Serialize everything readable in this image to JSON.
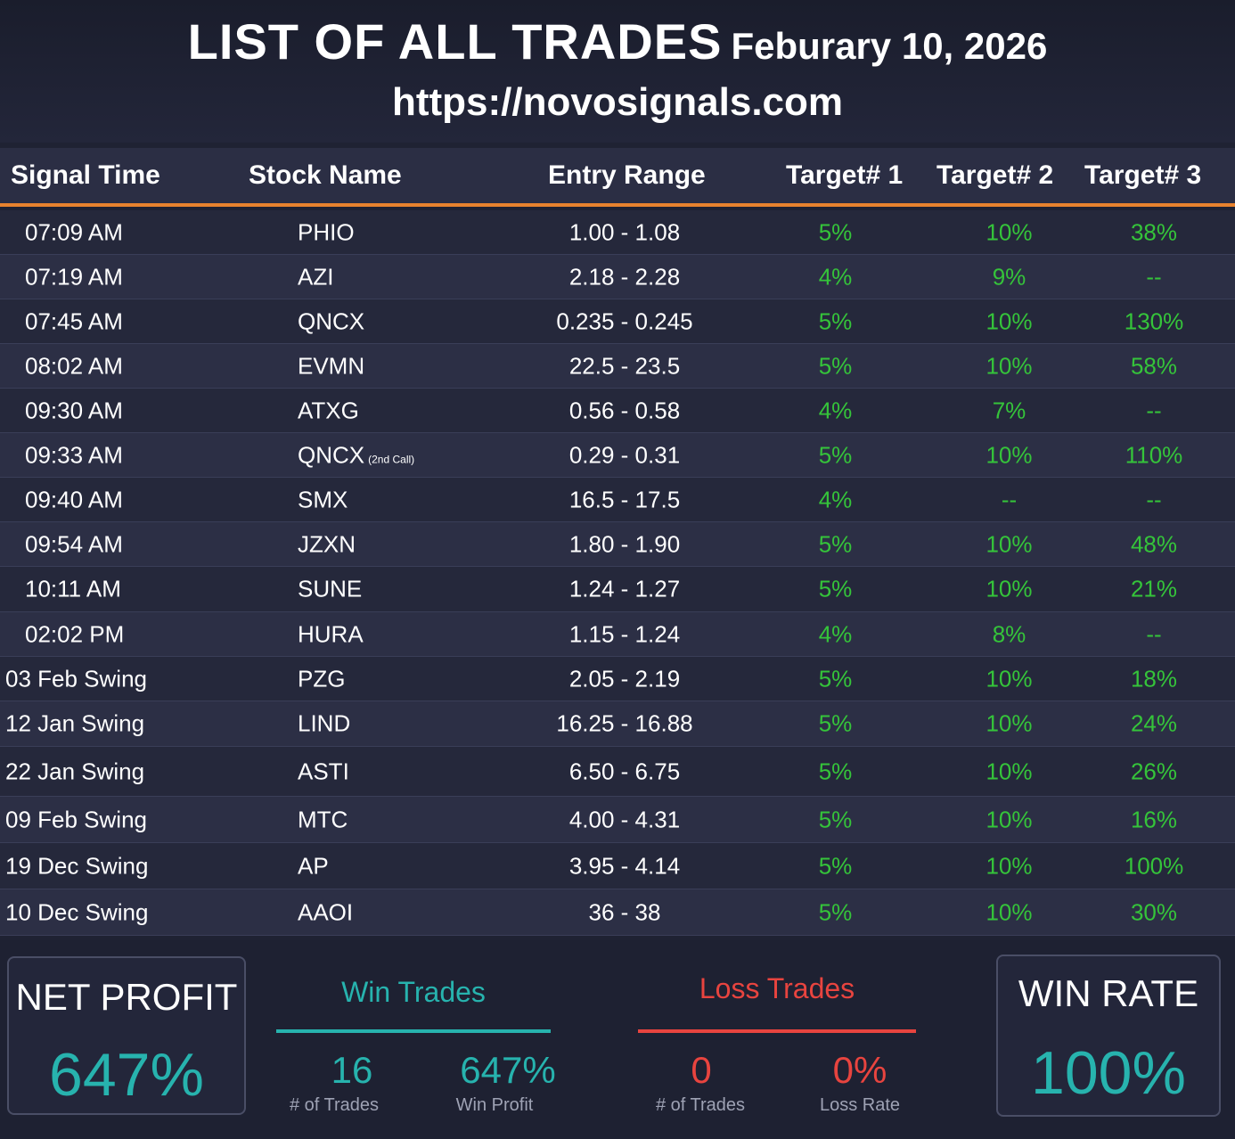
{
  "header": {
    "title": "LIST OF ALL TRADES",
    "date": "Feburary 10, 2026",
    "url": "https://novosignals.com"
  },
  "table": {
    "columns": [
      "Signal Time",
      "Stock Name",
      "Entry Range",
      "Target# 1",
      "Target# 2",
      "Target# 3"
    ],
    "rows": [
      {
        "time": "07:09 AM",
        "stock": "PHIO",
        "note": "",
        "entry": "1.00 - 1.08",
        "t1": "5%",
        "t2": "10%",
        "t3": "38%"
      },
      {
        "time": "07:19 AM",
        "stock": "AZI",
        "note": "",
        "entry": "2.18 - 2.28",
        "t1": "4%",
        "t2": "9%",
        "t3": "--"
      },
      {
        "time": "07:45 AM",
        "stock": "QNCX",
        "note": "",
        "entry": "0.235 - 0.245",
        "t1": "5%",
        "t2": "10%",
        "t3": "130%"
      },
      {
        "time": "08:02 AM",
        "stock": "EVMN",
        "note": "",
        "entry": "22.5 - 23.5",
        "t1": "5%",
        "t2": "10%",
        "t3": "58%"
      },
      {
        "time": "09:30 AM",
        "stock": "ATXG",
        "note": "",
        "entry": "0.56 - 0.58",
        "t1": "4%",
        "t2": "7%",
        "t3": "--"
      },
      {
        "time": "09:33 AM",
        "stock": "QNCX",
        "note": "(2nd Call)",
        "entry": "0.29 - 0.31",
        "t1": "5%",
        "t2": "10%",
        "t3": "110%"
      },
      {
        "time": "09:40 AM",
        "stock": "SMX",
        "note": "",
        "entry": "16.5 - 17.5",
        "t1": "4%",
        "t2": "--",
        "t3": "--"
      },
      {
        "time": "09:54 AM",
        "stock": "JZXN",
        "note": "",
        "entry": "1.80 - 1.90",
        "t1": "5%",
        "t2": "10%",
        "t3": "48%"
      },
      {
        "time": "10:11 AM",
        "stock": "SUNE",
        "note": "",
        "entry": "1.24 - 1.27",
        "t1": "5%",
        "t2": "10%",
        "t3": "21%"
      },
      {
        "time": "02:02 PM",
        "stock": "HURA",
        "note": "",
        "entry": "1.15 - 1.24",
        "t1": "4%",
        "t2": "8%",
        "t3": "--"
      },
      {
        "time": "03 Feb Swing",
        "stock": "PZG",
        "note": "",
        "entry": "2.05 - 2.19",
        "t1": "5%",
        "t2": "10%",
        "t3": "18%"
      },
      {
        "time": "12 Jan Swing",
        "stock": "LIND",
        "note": "",
        "entry": "16.25 - 16.88",
        "t1": "5%",
        "t2": "10%",
        "t3": "24%"
      },
      {
        "time": "22 Jan Swing",
        "stock": "ASTI",
        "note": "",
        "entry": "6.50 - 6.75",
        "t1": "5%",
        "t2": "10%",
        "t3": "26%"
      },
      {
        "time": "09 Feb Swing",
        "stock": "MTC",
        "note": "",
        "entry": "4.00 - 4.31",
        "t1": "5%",
        "t2": "10%",
        "t3": "16%"
      },
      {
        "time": "19 Dec Swing",
        "stock": "AP",
        "note": "",
        "entry": "3.95 - 4.14",
        "t1": "5%",
        "t2": "10%",
        "t3": "100%"
      },
      {
        "time": "10 Dec Swing",
        "stock": "AAOI",
        "note": "",
        "entry": "36 - 38",
        "t1": "5%",
        "t2": "10%",
        "t3": "30%"
      }
    ]
  },
  "summary": {
    "net_profit_label": "NET PROFIT",
    "net_profit_value": "647%",
    "win_trades_title": "Win Trades",
    "win_trades_count": "16",
    "win_trades_count_label": "# of Trades",
    "win_profit": "647%",
    "win_profit_label": "Win Profit",
    "loss_trades_title": "Loss Trades",
    "loss_trades_count": "0",
    "loss_trades_count_label": "# of Trades",
    "loss_rate": "0%",
    "loss_rate_label": "Loss Rate",
    "win_rate_label": "WIN RATE",
    "win_rate_value": "100%"
  },
  "colors": {
    "accent_orange": "#e8822e",
    "positive_green": "#35c43a",
    "teal": "#27b3ae",
    "loss_red": "#e8443f"
  }
}
